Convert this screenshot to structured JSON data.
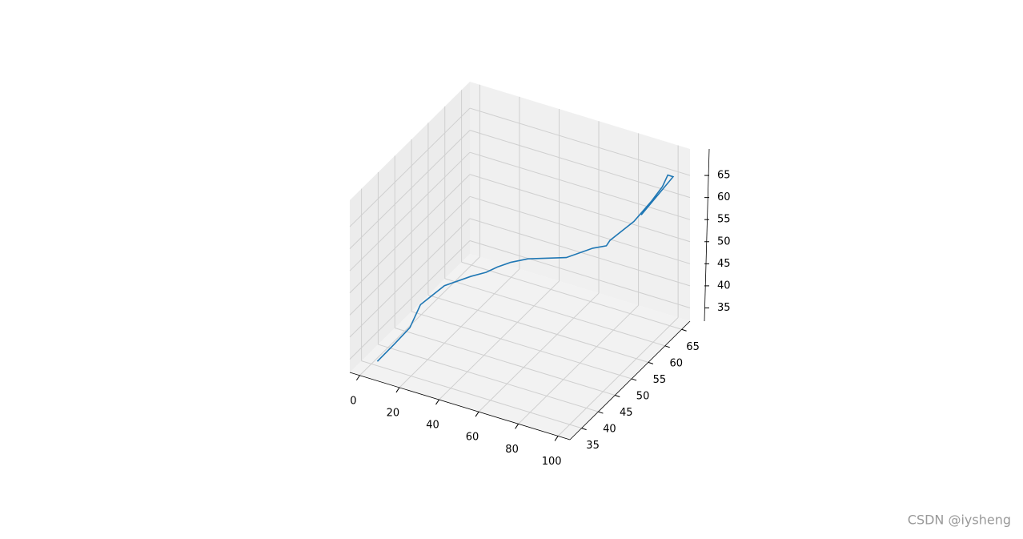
{
  "chart_data": {
    "type": "line3d",
    "x": [
      3,
      8,
      11,
      13,
      20,
      30,
      36,
      40,
      45,
      52,
      68,
      78,
      84,
      85,
      92,
      96,
      98,
      99,
      100,
      94
    ],
    "series": [
      {
        "color": "#1f77b4",
        "y": [
          35,
          37,
          40,
          42,
          45,
          47,
          48,
          49,
          50,
          51,
          53,
          55,
          55.5,
          56,
          59,
          62,
          64,
          65,
          66,
          60
        ],
        "z": [
          33,
          36,
          38,
          42,
          45,
          47,
          48,
          49,
          50,
          51,
          52,
          54,
          55,
          56,
          59,
          62,
          64,
          66,
          65,
          60
        ]
      }
    ],
    "xlim": [
      -5,
      106
    ],
    "ylim": [
      31.5,
      67.5
    ],
    "zlim": [
      32,
      71
    ],
    "xticks": [
      0,
      20,
      40,
      60,
      80,
      100
    ],
    "yticks": [
      35,
      40,
      45,
      50,
      55,
      60,
      65
    ],
    "zticks": [
      35,
      40,
      45,
      50,
      55,
      60,
      65
    ],
    "grid": true
  },
  "watermark": "CSDN @iysheng"
}
